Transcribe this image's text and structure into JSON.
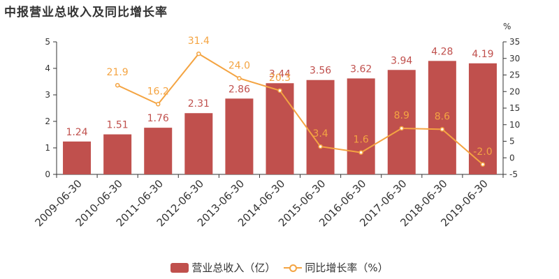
{
  "title": "中报营业总收入及同比增长率",
  "chart_data": {
    "type": "bar",
    "categories": [
      "2009-06-30",
      "2010-06-30",
      "2011-06-30",
      "2012-06-30",
      "2013-06-30",
      "2014-06-30",
      "2015-06-30",
      "2016-06-30",
      "2017-06-30",
      "2018-06-30",
      "2019-06-30"
    ],
    "series": [
      {
        "name": "营业总收入（亿）",
        "type": "bar",
        "axis": "left",
        "color": "#c0504d",
        "values": [
          1.24,
          1.51,
          1.76,
          2.31,
          2.86,
          3.44,
          3.56,
          3.62,
          3.94,
          4.28,
          4.19
        ],
        "labels": [
          "1.24",
          "1.51",
          "1.76",
          "2.31",
          "2.86",
          "3.44",
          "3.56",
          "3.62",
          "3.94",
          "4.28",
          "4.19"
        ]
      },
      {
        "name": "同比增长率（%）",
        "type": "line",
        "axis": "right",
        "color": "#f4a442",
        "values": [
          null,
          21.9,
          16.2,
          31.4,
          24.0,
          20.3,
          3.4,
          1.6,
          8.9,
          8.6,
          -2.0
        ],
        "labels": [
          "",
          "21.9",
          "16.2",
          "31.4",
          "24.0",
          "20.3",
          "3.4",
          "1.6",
          "8.9",
          "8.6",
          "-2.0"
        ]
      }
    ],
    "y_left": {
      "range": [
        0,
        5
      ],
      "ticks": [
        "0",
        "1",
        "2",
        "3",
        "4",
        "5"
      ]
    },
    "y_right": {
      "range": [
        -5,
        35
      ],
      "unit": "%",
      "ticks": [
        "-5",
        "0",
        "5",
        "10",
        "15",
        "20",
        "25",
        "30",
        "35"
      ]
    },
    "grid": false,
    "legend": "bottom-center"
  }
}
